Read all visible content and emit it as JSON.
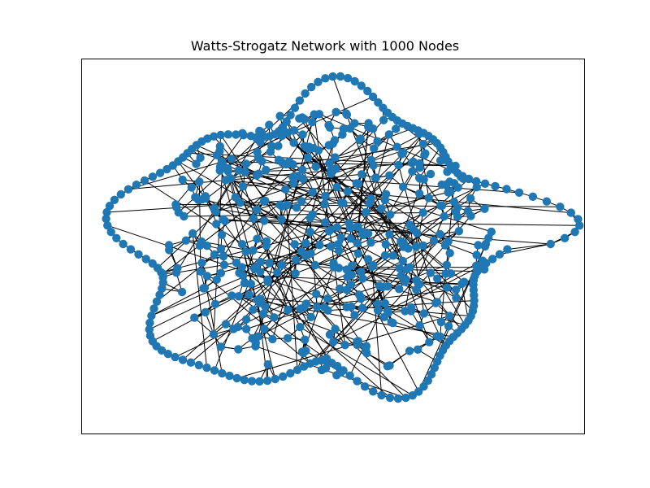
{
  "figure": {
    "title": "Watts-Strogatz Network with 1000 Nodes"
  },
  "graph": {
    "type": "watts-strogatz network",
    "node_count": 1000,
    "node_color": "#1f77b4",
    "edge_color": "#000000",
    "background": "#ffffff"
  }
}
